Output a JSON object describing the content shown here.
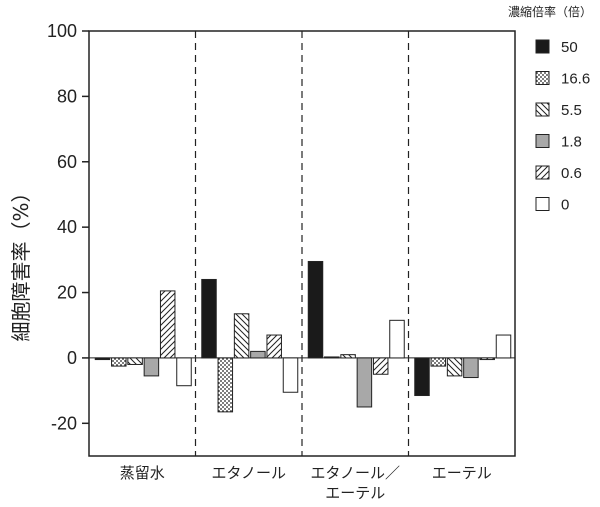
{
  "chart_data": {
    "type": "bar",
    "title": "",
    "ylabel": "細胞障害率（%）",
    "xlabel": "",
    "ylim": [
      -30,
      100
    ],
    "yticks": [
      100,
      80,
      60,
      40,
      20,
      0,
      -20
    ],
    "categories": [
      {
        "lines": [
          "蒸留水"
        ]
      },
      {
        "lines": [
          "エタノール"
        ]
      },
      {
        "lines": [
          "エタノール／",
          "エーテル"
        ]
      },
      {
        "lines": [
          "エーテル"
        ]
      }
    ],
    "legend_title": "濃縮倍率（倍）",
    "series": [
      {
        "name": "50",
        "pattern": "solid-black",
        "values": [
          -0.5,
          24,
          29.5,
          -11.5
        ]
      },
      {
        "name": "16.6",
        "pattern": "dots",
        "values": [
          -2.5,
          -16.5,
          0.3,
          -2.5
        ]
      },
      {
        "name": "5.5",
        "pattern": "backslash",
        "values": [
          -2,
          13.5,
          1,
          -5.5
        ]
      },
      {
        "name": "1.8",
        "pattern": "solid-gray",
        "values": [
          -5.5,
          2,
          -15,
          -6
        ]
      },
      {
        "name": "0.6",
        "pattern": "slash",
        "values": [
          20.5,
          7,
          -5,
          -0.5
        ]
      },
      {
        "name": "0",
        "pattern": "white",
        "values": [
          -8.5,
          -10.5,
          11.5,
          7
        ]
      }
    ]
  }
}
